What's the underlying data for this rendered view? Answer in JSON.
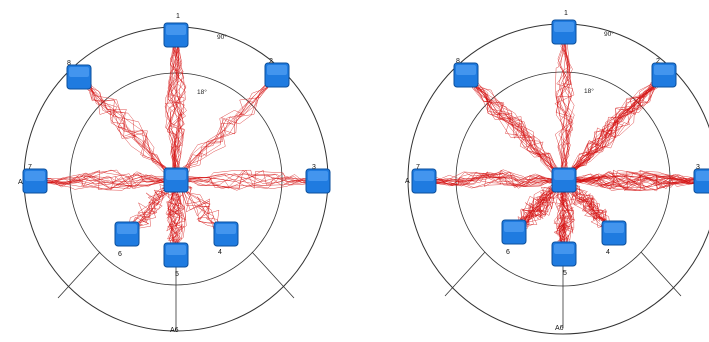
{
  "colors": {
    "background": "#ffffff",
    "circle_stroke": "#333333",
    "trajectory": "#d41010",
    "target_fill": "#1f7be0",
    "target_edge": "#0b4f9c",
    "target_highlight": "#6fb6ff"
  },
  "panels": [
    {
      "id": "left",
      "angle_outer": "90°",
      "angle_inner": "18°",
      "bottom_label": "A6",
      "left_label": "A",
      "target_labels": [
        "1",
        "2",
        "3",
        "4",
        "5",
        "6",
        "7",
        "8"
      ],
      "trajectory_density": "medium"
    },
    {
      "id": "right",
      "angle_outer": "90°",
      "angle_inner": "18°",
      "bottom_label": "A6",
      "left_label": "A",
      "target_labels": [
        "1",
        "2",
        "3",
        "4",
        "5",
        "6",
        "7",
        "8"
      ],
      "trajectory_density": "high"
    }
  ]
}
